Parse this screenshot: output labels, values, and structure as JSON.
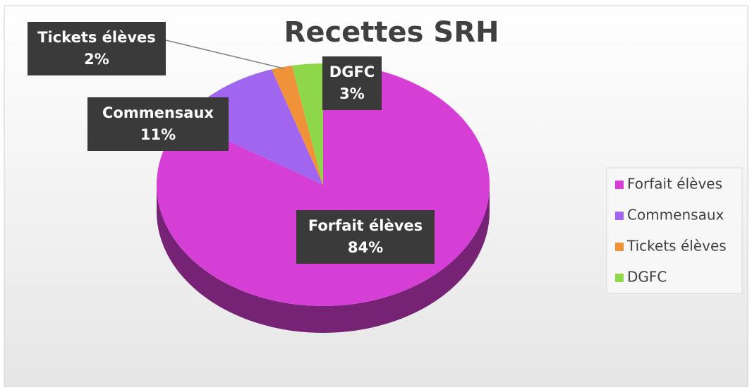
{
  "chart_data": {
    "type": "pie",
    "title": "Recettes SRH",
    "categories": [
      "Forfait élèves",
      "Commensaux",
      "Tickets élèves",
      "DGFC"
    ],
    "values": [
      84,
      11,
      2,
      3
    ],
    "value_labels": [
      "84%",
      "11%",
      "2%",
      "3%"
    ],
    "colors": [
      "#d63fd6",
      "#a066f0",
      "#f0923a",
      "#8ed64a"
    ],
    "legend": "right"
  }
}
